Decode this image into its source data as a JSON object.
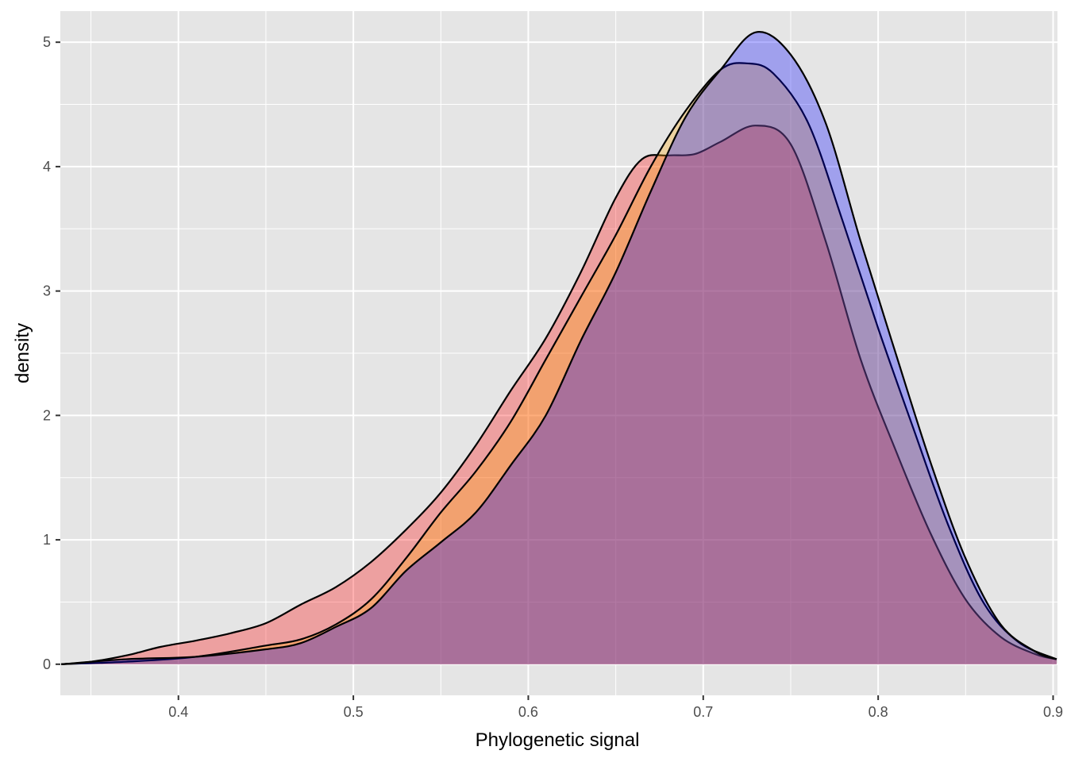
{
  "chart_data": {
    "type": "area",
    "title": "",
    "xlabel": "Phylogenetic signal",
    "ylabel": "density",
    "xlim": [
      0.3325,
      0.9025
    ],
    "ylim": [
      -0.25,
      5.25
    ],
    "x_ticks": [
      0.4,
      0.5,
      0.6,
      0.7,
      0.8,
      0.9
    ],
    "x_tick_labels": [
      "0.4",
      "0.5",
      "0.6",
      "0.7",
      "0.8",
      "0.9"
    ],
    "x_minor_ticks": [
      0.35,
      0.45,
      0.55,
      0.65,
      0.75,
      0.85
    ],
    "y_ticks": [
      0,
      1,
      2,
      3,
      4,
      5
    ],
    "y_tick_labels": [
      "0",
      "1",
      "2",
      "3",
      "4",
      "5"
    ],
    "y_minor_ticks": [
      0.5,
      1.5,
      2.5,
      3.5,
      4.5
    ],
    "grid": true,
    "legend": "none",
    "background_color": "#e5e5e5",
    "grid_color": "#ffffff",
    "series": [
      {
        "fill": "#ff0000",
        "fill_opacity": 0.3,
        "stroke": "#000000",
        "points": [
          [
            0.333,
            0.0
          ],
          [
            0.35,
            0.02
          ],
          [
            0.37,
            0.07
          ],
          [
            0.39,
            0.14
          ],
          [
            0.41,
            0.19
          ],
          [
            0.43,
            0.25
          ],
          [
            0.45,
            0.33
          ],
          [
            0.47,
            0.48
          ],
          [
            0.49,
            0.62
          ],
          [
            0.51,
            0.82
          ],
          [
            0.53,
            1.08
          ],
          [
            0.55,
            1.38
          ],
          [
            0.57,
            1.76
          ],
          [
            0.59,
            2.2
          ],
          [
            0.61,
            2.62
          ],
          [
            0.63,
            3.15
          ],
          [
            0.65,
            3.75
          ],
          [
            0.665,
            4.06
          ],
          [
            0.68,
            4.09
          ],
          [
            0.695,
            4.1
          ],
          [
            0.71,
            4.2
          ],
          [
            0.73,
            4.33
          ],
          [
            0.75,
            4.18
          ],
          [
            0.77,
            3.4
          ],
          [
            0.79,
            2.45
          ],
          [
            0.81,
            1.72
          ],
          [
            0.83,
            1.05
          ],
          [
            0.85,
            0.52
          ],
          [
            0.87,
            0.22
          ],
          [
            0.89,
            0.08
          ],
          [
            0.902,
            0.04
          ]
        ]
      },
      {
        "fill": "#ffa500",
        "fill_opacity": 0.3,
        "stroke": "#000000",
        "points": [
          [
            0.333,
            0.0
          ],
          [
            0.37,
            0.02
          ],
          [
            0.41,
            0.06
          ],
          [
            0.45,
            0.15
          ],
          [
            0.47,
            0.2
          ],
          [
            0.49,
            0.32
          ],
          [
            0.51,
            0.52
          ],
          [
            0.53,
            0.85
          ],
          [
            0.55,
            1.22
          ],
          [
            0.57,
            1.55
          ],
          [
            0.59,
            1.95
          ],
          [
            0.61,
            2.45
          ],
          [
            0.63,
            2.95
          ],
          [
            0.65,
            3.45
          ],
          [
            0.67,
            4.0
          ],
          [
            0.69,
            4.45
          ],
          [
            0.71,
            4.78
          ],
          [
            0.725,
            4.83
          ],
          [
            0.74,
            4.75
          ],
          [
            0.76,
            4.35
          ],
          [
            0.78,
            3.55
          ],
          [
            0.8,
            2.7
          ],
          [
            0.82,
            1.9
          ],
          [
            0.84,
            1.12
          ],
          [
            0.86,
            0.5
          ],
          [
            0.88,
            0.18
          ],
          [
            0.902,
            0.04
          ]
        ]
      },
      {
        "fill": "#0000ff",
        "fill_opacity": 0.3,
        "stroke": "#000000",
        "points": [
          [
            0.333,
            0.0
          ],
          [
            0.37,
            0.04
          ],
          [
            0.41,
            0.06
          ],
          [
            0.45,
            0.12
          ],
          [
            0.47,
            0.17
          ],
          [
            0.49,
            0.3
          ],
          [
            0.51,
            0.45
          ],
          [
            0.53,
            0.75
          ],
          [
            0.55,
            0.98
          ],
          [
            0.57,
            1.22
          ],
          [
            0.59,
            1.6
          ],
          [
            0.61,
            2.0
          ],
          [
            0.63,
            2.6
          ],
          [
            0.65,
            3.15
          ],
          [
            0.67,
            3.8
          ],
          [
            0.69,
            4.4
          ],
          [
            0.71,
            4.78
          ],
          [
            0.73,
            5.08
          ],
          [
            0.75,
            4.9
          ],
          [
            0.77,
            4.35
          ],
          [
            0.79,
            3.4
          ],
          [
            0.81,
            2.5
          ],
          [
            0.83,
            1.62
          ],
          [
            0.85,
            0.85
          ],
          [
            0.87,
            0.32
          ],
          [
            0.89,
            0.1
          ],
          [
            0.902,
            0.04
          ]
        ]
      }
    ]
  }
}
